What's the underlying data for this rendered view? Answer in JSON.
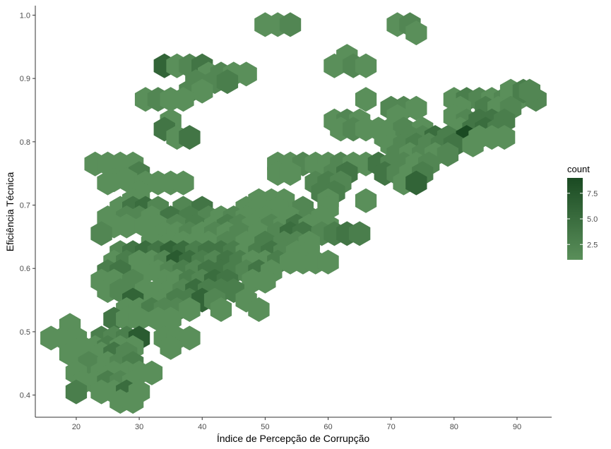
{
  "chart_data": {
    "type": "hexbin",
    "xlabel": "Índice de Percepção de Corrupção",
    "ylabel": "Eficiência Técnica",
    "xlim": [
      13.5,
      95.5
    ],
    "ylim": [
      0.365,
      1.015
    ],
    "xticks": [
      20,
      30,
      40,
      50,
      60,
      70,
      80,
      90
    ],
    "yticks": [
      0.4,
      0.5,
      0.6,
      0.7,
      0.8,
      0.9,
      1.0
    ],
    "ytick_labels": [
      "0.4",
      "0.5",
      "0.6",
      "0.7",
      "0.8",
      "0.9",
      "1.0"
    ],
    "hex_width": 3.4,
    "legend": {
      "title": "count",
      "ticks": [
        2.5,
        5.0,
        7.5
      ],
      "tick_labels": [
        "2.5",
        "5.0",
        "7.5"
      ],
      "range": [
        1,
        9
      ],
      "color_low": "#5a8f5a",
      "color_high": "#1a4a22"
    },
    "colors": {
      "low": "#5a8f5a",
      "high": "#1a4a22",
      "axis": "#333333"
    },
    "bins": [
      [
        50,
        0.985,
        1
      ],
      [
        52,
        0.985,
        1
      ],
      [
        54,
        0.985,
        2
      ],
      [
        71,
        0.985,
        1
      ],
      [
        73,
        0.985,
        2
      ],
      [
        74,
        0.972,
        1
      ],
      [
        63,
        0.935,
        1
      ],
      [
        61,
        0.92,
        1
      ],
      [
        64,
        0.92,
        2
      ],
      [
        66,
        0.92,
        1
      ],
      [
        34,
        0.92,
        6
      ],
      [
        36,
        0.92,
        1
      ],
      [
        38,
        0.92,
        2
      ],
      [
        40,
        0.92,
        4
      ],
      [
        41,
        0.907,
        1
      ],
      [
        43,
        0.907,
        2
      ],
      [
        45,
        0.907,
        1
      ],
      [
        47,
        0.907,
        1
      ],
      [
        39,
        0.895,
        2
      ],
      [
        42,
        0.895,
        2
      ],
      [
        44,
        0.895,
        3
      ],
      [
        38,
        0.88,
        2
      ],
      [
        40,
        0.88,
        1
      ],
      [
        31,
        0.867,
        1
      ],
      [
        33,
        0.867,
        2
      ],
      [
        35,
        0.867,
        1
      ],
      [
        37,
        0.867,
        1
      ],
      [
        66,
        0.867,
        1
      ],
      [
        80,
        0.867,
        1
      ],
      [
        82,
        0.867,
        3
      ],
      [
        84,
        0.867,
        2
      ],
      [
        86,
        0.867,
        1
      ],
      [
        88,
        0.867,
        2
      ],
      [
        90,
        0.867,
        1
      ],
      [
        93,
        0.867,
        2
      ],
      [
        89,
        0.88,
        1
      ],
      [
        91,
        0.88,
        3
      ],
      [
        92,
        0.88,
        2
      ],
      [
        70,
        0.853,
        2
      ],
      [
        72,
        0.853,
        2
      ],
      [
        74,
        0.853,
        1
      ],
      [
        81,
        0.853,
        1
      ],
      [
        85,
        0.853,
        3
      ],
      [
        87,
        0.853,
        1
      ],
      [
        89,
        0.853,
        2
      ],
      [
        71,
        0.84,
        1
      ],
      [
        80,
        0.84,
        1
      ],
      [
        35,
        0.833,
        1
      ],
      [
        61,
        0.833,
        1
      ],
      [
        63,
        0.833,
        2
      ],
      [
        65,
        0.833,
        1
      ],
      [
        82,
        0.833,
        2
      ],
      [
        84,
        0.833,
        4
      ],
      [
        86,
        0.833,
        4
      ],
      [
        88,
        0.833,
        3
      ],
      [
        34,
        0.82,
        4
      ],
      [
        62,
        0.82,
        1
      ],
      [
        64,
        0.82,
        2
      ],
      [
        66,
        0.82,
        1
      ],
      [
        68,
        0.82,
        1
      ],
      [
        70,
        0.82,
        1
      ],
      [
        72,
        0.82,
        2
      ],
      [
        75,
        0.82,
        1
      ],
      [
        81,
        0.82,
        1
      ],
      [
        83,
        0.82,
        4
      ],
      [
        85,
        0.82,
        5
      ],
      [
        87,
        0.82,
        3
      ],
      [
        36,
        0.807,
        1
      ],
      [
        38,
        0.807,
        4
      ],
      [
        69,
        0.807,
        1
      ],
      [
        73,
        0.807,
        2
      ],
      [
        75,
        0.807,
        2
      ],
      [
        77,
        0.807,
        5
      ],
      [
        79,
        0.807,
        3
      ],
      [
        82,
        0.807,
        9
      ],
      [
        84,
        0.807,
        1
      ],
      [
        86,
        0.807,
        1
      ],
      [
        88,
        0.807,
        1
      ],
      [
        70,
        0.795,
        1
      ],
      [
        72,
        0.795,
        2
      ],
      [
        74,
        0.795,
        3
      ],
      [
        76,
        0.795,
        2
      ],
      [
        78,
        0.795,
        3
      ],
      [
        80,
        0.795,
        4
      ],
      [
        83,
        0.795,
        1
      ],
      [
        23,
        0.765,
        1
      ],
      [
        25,
        0.765,
        1
      ],
      [
        27,
        0.765,
        1
      ],
      [
        29,
        0.765,
        1
      ],
      [
        71,
        0.78,
        2
      ],
      [
        73,
        0.78,
        1
      ],
      [
        75,
        0.78,
        2
      ],
      [
        77,
        0.78,
        1
      ],
      [
        79,
        0.78,
        2
      ],
      [
        52,
        0.765,
        1
      ],
      [
        54,
        0.765,
        1
      ],
      [
        56,
        0.765,
        2
      ],
      [
        58,
        0.765,
        1
      ],
      [
        60,
        0.765,
        1
      ],
      [
        62,
        0.765,
        2
      ],
      [
        64,
        0.765,
        1
      ],
      [
        66,
        0.765,
        1
      ],
      [
        68,
        0.765,
        4
      ],
      [
        70,
        0.765,
        2
      ],
      [
        72,
        0.765,
        2
      ],
      [
        74,
        0.765,
        1
      ],
      [
        76,
        0.765,
        2
      ],
      [
        30,
        0.75,
        3
      ],
      [
        52,
        0.75,
        1
      ],
      [
        54,
        0.75,
        1
      ],
      [
        59,
        0.75,
        1
      ],
      [
        61,
        0.75,
        2
      ],
      [
        63,
        0.75,
        4
      ],
      [
        69,
        0.75,
        4
      ],
      [
        71,
        0.75,
        2
      ],
      [
        73,
        0.75,
        1
      ],
      [
        75,
        0.75,
        3
      ],
      [
        26,
        0.74,
        1
      ],
      [
        28,
        0.74,
        1
      ],
      [
        25,
        0.735,
        1
      ],
      [
        31,
        0.735,
        1
      ],
      [
        33,
        0.735,
        1
      ],
      [
        35,
        0.735,
        1
      ],
      [
        37,
        0.735,
        1
      ],
      [
        58,
        0.735,
        2
      ],
      [
        60,
        0.735,
        3
      ],
      [
        62,
        0.735,
        2
      ],
      [
        72,
        0.735,
        1
      ],
      [
        74,
        0.735,
        6
      ],
      [
        30,
        0.72,
        1
      ],
      [
        59,
        0.72,
        3
      ],
      [
        61,
        0.72,
        3
      ],
      [
        29,
        0.707,
        1
      ],
      [
        49,
        0.707,
        1
      ],
      [
        51,
        0.707,
        1
      ],
      [
        53,
        0.707,
        1
      ],
      [
        66,
        0.707,
        1
      ],
      [
        60,
        0.707,
        1
      ],
      [
        27,
        0.695,
        1
      ],
      [
        29,
        0.695,
        4
      ],
      [
        31,
        0.695,
        5
      ],
      [
        33,
        0.695,
        2
      ],
      [
        37,
        0.695,
        2
      ],
      [
        40,
        0.695,
        4
      ],
      [
        47,
        0.695,
        1
      ],
      [
        49,
        0.695,
        1
      ],
      [
        52,
        0.695,
        1
      ],
      [
        56,
        0.695,
        2
      ],
      [
        60,
        0.695,
        1
      ],
      [
        25,
        0.68,
        1
      ],
      [
        28,
        0.68,
        2
      ],
      [
        30,
        0.68,
        2
      ],
      [
        32,
        0.68,
        1
      ],
      [
        35,
        0.68,
        4
      ],
      [
        38,
        0.68,
        3
      ],
      [
        41,
        0.68,
        2
      ],
      [
        43,
        0.68,
        1
      ],
      [
        45,
        0.68,
        2
      ],
      [
        47,
        0.68,
        1
      ],
      [
        50,
        0.68,
        1
      ],
      [
        54,
        0.68,
        1
      ],
      [
        57,
        0.68,
        2
      ],
      [
        59,
        0.68,
        1
      ],
      [
        26,
        0.667,
        1
      ],
      [
        28,
        0.667,
        1
      ],
      [
        31,
        0.667,
        1
      ],
      [
        33,
        0.667,
        1
      ],
      [
        36,
        0.667,
        2
      ],
      [
        39,
        0.667,
        3
      ],
      [
        42,
        0.667,
        1
      ],
      [
        44,
        0.667,
        3
      ],
      [
        46,
        0.667,
        2
      ],
      [
        48,
        0.667,
        1
      ],
      [
        51,
        0.667,
        2
      ],
      [
        53,
        0.667,
        1
      ],
      [
        55,
        0.667,
        4
      ],
      [
        57,
        0.667,
        1
      ],
      [
        60,
        0.667,
        1
      ],
      [
        24,
        0.655,
        2
      ],
      [
        34,
        0.655,
        1
      ],
      [
        36,
        0.655,
        1
      ],
      [
        38,
        0.655,
        2
      ],
      [
        40,
        0.655,
        1
      ],
      [
        42,
        0.655,
        2
      ],
      [
        44,
        0.655,
        1
      ],
      [
        46,
        0.655,
        2
      ],
      [
        49,
        0.655,
        1
      ],
      [
        52,
        0.655,
        2
      ],
      [
        54,
        0.655,
        5
      ],
      [
        56,
        0.655,
        4
      ],
      [
        59,
        0.655,
        2
      ],
      [
        61,
        0.655,
        3
      ],
      [
        63,
        0.655,
        4
      ],
      [
        65,
        0.655,
        3
      ],
      [
        32,
        0.64,
        1
      ],
      [
        35,
        0.64,
        1
      ],
      [
        37,
        0.64,
        1
      ],
      [
        39,
        0.64,
        1
      ],
      [
        41,
        0.64,
        1
      ],
      [
        44,
        0.64,
        2
      ],
      [
        47,
        0.64,
        1
      ],
      [
        50,
        0.64,
        3
      ],
      [
        53,
        0.64,
        2
      ],
      [
        55,
        0.64,
        2
      ],
      [
        57,
        0.64,
        1
      ],
      [
        27,
        0.625,
        2
      ],
      [
        29,
        0.625,
        4
      ],
      [
        31,
        0.625,
        5
      ],
      [
        33,
        0.625,
        4
      ],
      [
        35,
        0.625,
        6
      ],
      [
        37,
        0.625,
        5
      ],
      [
        39,
        0.625,
        3
      ],
      [
        41,
        0.625,
        4
      ],
      [
        43,
        0.625,
        4
      ],
      [
        45,
        0.625,
        3
      ],
      [
        47,
        0.625,
        1
      ],
      [
        49,
        0.625,
        3
      ],
      [
        51,
        0.625,
        4
      ],
      [
        53,
        0.625,
        2
      ],
      [
        55,
        0.625,
        1
      ],
      [
        57,
        0.625,
        1
      ],
      [
        26,
        0.61,
        1
      ],
      [
        28,
        0.61,
        3
      ],
      [
        30,
        0.61,
        1
      ],
      [
        32,
        0.61,
        1
      ],
      [
        34,
        0.61,
        2
      ],
      [
        36,
        0.61,
        7
      ],
      [
        38,
        0.61,
        5
      ],
      [
        40,
        0.61,
        3
      ],
      [
        42,
        0.61,
        2
      ],
      [
        44,
        0.61,
        4
      ],
      [
        46,
        0.61,
        3
      ],
      [
        48,
        0.61,
        1
      ],
      [
        50,
        0.61,
        1
      ],
      [
        52,
        0.61,
        3
      ],
      [
        54,
        0.61,
        1
      ],
      [
        56,
        0.61,
        1
      ],
      [
        58,
        0.61,
        1
      ],
      [
        60,
        0.61,
        1
      ],
      [
        25,
        0.595,
        3
      ],
      [
        27,
        0.595,
        4
      ],
      [
        31,
        0.595,
        1
      ],
      [
        33,
        0.595,
        1
      ],
      [
        35,
        0.595,
        2
      ],
      [
        37,
        0.595,
        3
      ],
      [
        39,
        0.595,
        2
      ],
      [
        41,
        0.595,
        4
      ],
      [
        43,
        0.595,
        4
      ],
      [
        45,
        0.595,
        3
      ],
      [
        47,
        0.595,
        2
      ],
      [
        49,
        0.595,
        4
      ],
      [
        51,
        0.595,
        1
      ],
      [
        24,
        0.58,
        1
      ],
      [
        26,
        0.58,
        1
      ],
      [
        29,
        0.58,
        2
      ],
      [
        34,
        0.58,
        1
      ],
      [
        36,
        0.58,
        1
      ],
      [
        38,
        0.58,
        3
      ],
      [
        40,
        0.58,
        2
      ],
      [
        42,
        0.58,
        5
      ],
      [
        44,
        0.58,
        4
      ],
      [
        48,
        0.58,
        1
      ],
      [
        50,
        0.58,
        1
      ],
      [
        25,
        0.565,
        1
      ],
      [
        27,
        0.565,
        2
      ],
      [
        31,
        0.565,
        1
      ],
      [
        33,
        0.565,
        1
      ],
      [
        35,
        0.565,
        1
      ],
      [
        37,
        0.565,
        2
      ],
      [
        39,
        0.565,
        5
      ],
      [
        41,
        0.565,
        3
      ],
      [
        43,
        0.565,
        3
      ],
      [
        45,
        0.565,
        3
      ],
      [
        29,
        0.55,
        6
      ],
      [
        34,
        0.55,
        1
      ],
      [
        36,
        0.55,
        3
      ],
      [
        38,
        0.55,
        3
      ],
      [
        40,
        0.55,
        6
      ],
      [
        42,
        0.55,
        2
      ],
      [
        47,
        0.55,
        1
      ],
      [
        28,
        0.535,
        1
      ],
      [
        30,
        0.535,
        1
      ],
      [
        32,
        0.535,
        3
      ],
      [
        34,
        0.535,
        2
      ],
      [
        36,
        0.535,
        2
      ],
      [
        38,
        0.535,
        1
      ],
      [
        43,
        0.535,
        1
      ],
      [
        49,
        0.535,
        1
      ],
      [
        19,
        0.51,
        1
      ],
      [
        26,
        0.52,
        4
      ],
      [
        28,
        0.52,
        1
      ],
      [
        30,
        0.52,
        1
      ],
      [
        33,
        0.52,
        1
      ],
      [
        35,
        0.52,
        1
      ],
      [
        16,
        0.49,
        1
      ],
      [
        18,
        0.49,
        1
      ],
      [
        20,
        0.49,
        1
      ],
      [
        24,
        0.49,
        3
      ],
      [
        26,
        0.49,
        2
      ],
      [
        28,
        0.49,
        3
      ],
      [
        30,
        0.49,
        7
      ],
      [
        34,
        0.49,
        1
      ],
      [
        36,
        0.49,
        1
      ],
      [
        38,
        0.49,
        1
      ],
      [
        21,
        0.475,
        1
      ],
      [
        23,
        0.475,
        1
      ],
      [
        25,
        0.475,
        3
      ],
      [
        27,
        0.475,
        1
      ],
      [
        29,
        0.475,
        1
      ],
      [
        35,
        0.475,
        1
      ],
      [
        19,
        0.465,
        1
      ],
      [
        24,
        0.465,
        1
      ],
      [
        26,
        0.465,
        4
      ],
      [
        28,
        0.465,
        2
      ],
      [
        22,
        0.45,
        2
      ],
      [
        25,
        0.45,
        1
      ],
      [
        27,
        0.45,
        2
      ],
      [
        29,
        0.45,
        3
      ],
      [
        20,
        0.435,
        1
      ],
      [
        24,
        0.435,
        1
      ],
      [
        26,
        0.435,
        1
      ],
      [
        28,
        0.435,
        1
      ],
      [
        30,
        0.435,
        1
      ],
      [
        32,
        0.435,
        1
      ],
      [
        21,
        0.42,
        1
      ],
      [
        23,
        0.42,
        1
      ],
      [
        25,
        0.42,
        3
      ],
      [
        27,
        0.42,
        2
      ],
      [
        29,
        0.42,
        1
      ],
      [
        20,
        0.405,
        3
      ],
      [
        24,
        0.405,
        1
      ],
      [
        26,
        0.405,
        1
      ],
      [
        28,
        0.405,
        5
      ],
      [
        30,
        0.405,
        1
      ],
      [
        27,
        0.39,
        1
      ],
      [
        29,
        0.39,
        1
      ]
    ]
  }
}
